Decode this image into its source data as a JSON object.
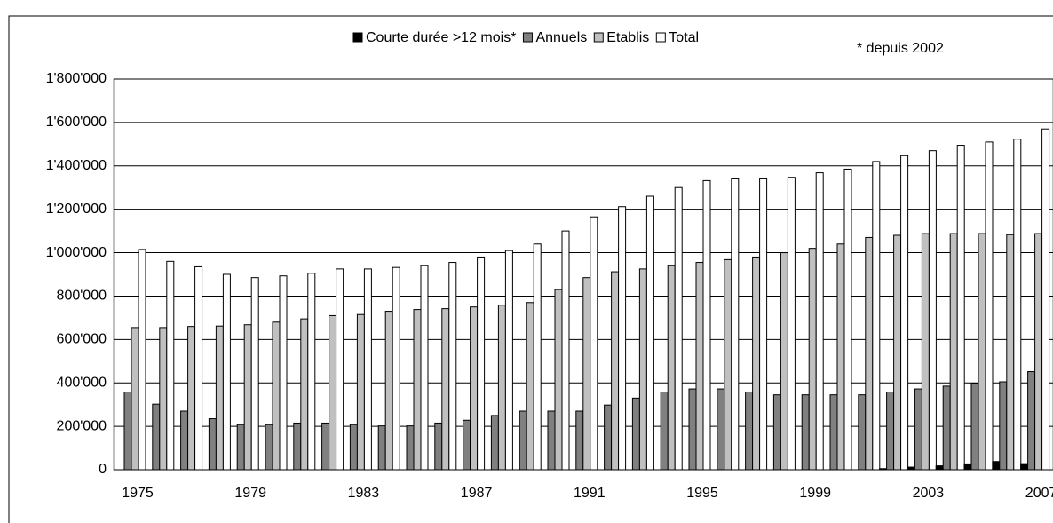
{
  "chart_data": {
    "type": "bar",
    "annotation": "* depuis 2002",
    "categories": [
      "1975",
      null,
      null,
      null,
      "1979",
      null,
      null,
      null,
      "1983",
      null,
      null,
      null,
      "1987",
      null,
      null,
      null,
      "1991",
      null,
      null,
      null,
      "1995",
      null,
      null,
      null,
      "1999",
      null,
      null,
      null,
      "2003",
      null,
      null,
      null,
      "2007"
    ],
    "series": [
      {
        "name": "Courte durée >12 mois*",
        "color": "#000000",
        "values": [
          null,
          null,
          null,
          null,
          null,
          null,
          null,
          null,
          null,
          null,
          null,
          null,
          null,
          null,
          null,
          null,
          null,
          null,
          null,
          null,
          null,
          null,
          null,
          null,
          null,
          null,
          null,
          5000,
          12000,
          18000,
          27000,
          38000,
          28000
        ]
      },
      {
        "name": "Annuels",
        "color": "#808080",
        "values": [
          358000,
          302000,
          270000,
          235000,
          208000,
          208000,
          215000,
          215000,
          208000,
          202000,
          202000,
          215000,
          228000,
          250000,
          270000,
          270000,
          270000,
          298000,
          330000,
          358000,
          372000,
          372000,
          358000,
          345000,
          345000,
          345000,
          345000,
          358000,
          372000,
          385000,
          398000,
          405000,
          452000
        ]
      },
      {
        "name": "Etablis",
        "color": "#c0c0c0",
        "values": [
          655000,
          655000,
          660000,
          662000,
          668000,
          680000,
          695000,
          710000,
          715000,
          730000,
          738000,
          742000,
          750000,
          758000,
          770000,
          830000,
          885000,
          912000,
          925000,
          940000,
          955000,
          968000,
          980000,
          1000000,
          1020000,
          1040000,
          1070000,
          1080000,
          1088000,
          1088000,
          1088000,
          1083000,
          1088000
        ]
      },
      {
        "name": "Total",
        "color": "#ffffff",
        "values": [
          1015000,
          960000,
          935000,
          900000,
          885000,
          893000,
          905000,
          925000,
          925000,
          932000,
          940000,
          955000,
          980000,
          1010000,
          1040000,
          1100000,
          1165000,
          1212000,
          1260000,
          1300000,
          1332000,
          1340000,
          1340000,
          1347000,
          1368000,
          1385000,
          1420000,
          1447000,
          1470000,
          1495000,
          1510000,
          1523000,
          1570000
        ]
      }
    ],
    "ylim": [
      0,
      1800000
    ],
    "yticks": [
      0,
      {
        "value": 200000,
        "label": "200'000"
      },
      {
        "value": 400000,
        "label": "400'000"
      },
      {
        "value": 600000,
        "label": "600'000"
      },
      {
        "value": 800000,
        "label": "800'000"
      },
      {
        "value": 1000000,
        "label": "1'000'000"
      },
      {
        "value": 1200000,
        "label": "1'200'000"
      },
      {
        "value": 1400000,
        "label": "1'400'000"
      },
      {
        "value": 1600000,
        "label": "1'600'000"
      },
      {
        "value": 1800000,
        "label": "1'800'000"
      }
    ],
    "grid": true
  }
}
